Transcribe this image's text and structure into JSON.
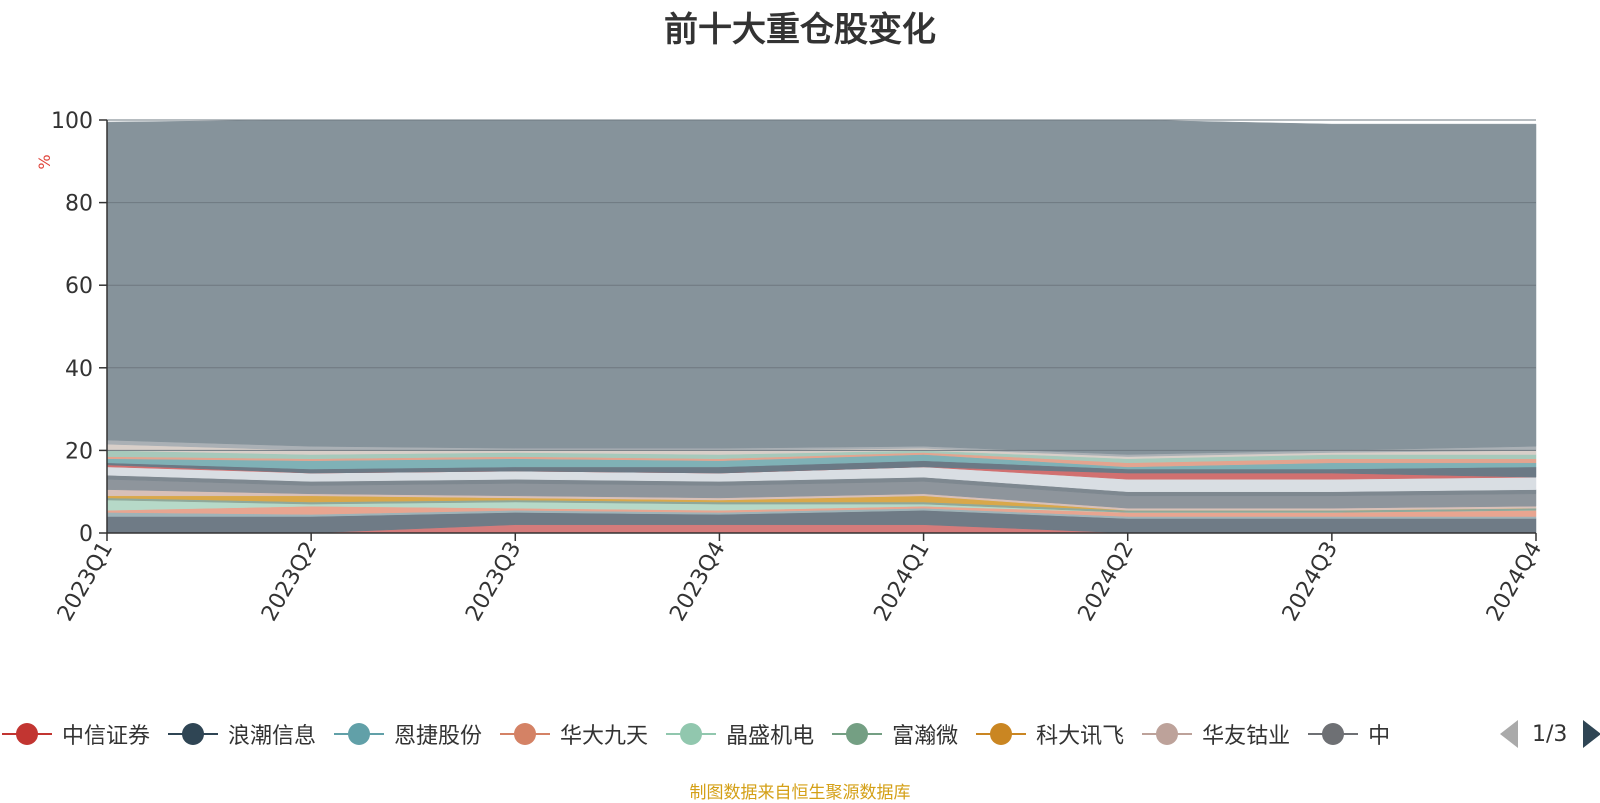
{
  "title": "前十大重仓股变化",
  "source_note": "制图数据来自恒生聚源数据库",
  "pager": {
    "text": "1/3"
  },
  "chart_data": {
    "type": "area",
    "stacked": true,
    "title": "前十大重仓股变化",
    "ylabel": "%",
    "ylim": [
      0,
      100
    ],
    "yticks": [
      0,
      20,
      40,
      60,
      80,
      100
    ],
    "grid": true,
    "x": [
      "2023Q1",
      "2023Q2",
      "2023Q3",
      "2023Q4",
      "2024Q1",
      "2024Q2",
      "2024Q3",
      "2024Q4"
    ],
    "legend_position": "bottom",
    "legend": [
      {
        "name": "中信证券",
        "color": "#c23531"
      },
      {
        "name": "浪潮信息",
        "color": "#2f4554"
      },
      {
        "name": "恩捷股份",
        "color": "#61a0a8"
      },
      {
        "name": "华大九天",
        "color": "#d48265"
      },
      {
        "name": "晶盛机电",
        "color": "#91c7ae"
      },
      {
        "name": "富瀚微",
        "color": "#749f83"
      },
      {
        "name": "科大讯飞",
        "color": "#ca8622"
      },
      {
        "name": "华友钴业",
        "color": "#bda29a"
      },
      {
        "name": "中",
        "color": "#6e7074"
      }
    ],
    "series": [
      {
        "values": [
          0,
          0,
          2,
          2,
          2,
          0,
          0,
          0
        ],
        "color": "#d47b7b"
      },
      {
        "values": [
          4,
          4,
          3,
          2.5,
          3.5,
          3.5,
          3.5,
          3.5
        ],
        "color": "#6f7b86"
      },
      {
        "values": [
          1,
          0.5,
          0.5,
          0.5,
          0.5,
          0.5,
          0.5,
          0.5
        ],
        "color": "#9fb3b8"
      },
      {
        "values": [
          0.5,
          2,
          0.5,
          0.5,
          0.5,
          1,
          1,
          1.5
        ],
        "color": "#e8a590"
      },
      {
        "values": [
          2.5,
          0.5,
          1.5,
          1.5,
          0.5,
          0,
          0,
          0
        ],
        "color": "#b6d9c8"
      },
      {
        "values": [
          0.5,
          0.5,
          0.5,
          0.5,
          0.5,
          0.5,
          0.5,
          0.5
        ],
        "color": "#8fa89a"
      },
      {
        "values": [
          0.5,
          1.5,
          0.5,
          0.5,
          1.5,
          0,
          0,
          0
        ],
        "color": "#d9a84a"
      },
      {
        "values": [
          1.5,
          0.5,
          0.5,
          0.5,
          0.5,
          0.5,
          0.5,
          0.5
        ],
        "color": "#d8c0b8"
      },
      {
        "values": [
          2.5,
          2,
          3,
          3,
          3,
          3,
          3,
          3
        ],
        "color": "#8e959c"
      },
      {
        "values": [
          1,
          1,
          1,
          1,
          1,
          1,
          1,
          1
        ],
        "color": "#7e8890"
      },
      {
        "values": [
          2,
          2,
          2,
          2,
          2.5,
          3,
          3,
          3
        ],
        "color": "#d9dee3"
      },
      {
        "values": [
          0.5,
          0,
          0,
          0,
          0,
          1.5,
          1.5,
          0
        ],
        "color": "#d17070"
      },
      {
        "values": [
          0.5,
          1,
          1,
          1.5,
          1.5,
          1,
          1,
          2.5
        ],
        "color": "#6b7985"
      },
      {
        "values": [
          1,
          2,
          2,
          1.5,
          1.5,
          0.5,
          1.5,
          1
        ],
        "color": "#7fb1b6"
      },
      {
        "values": [
          0.5,
          0.5,
          0.5,
          0.5,
          0.5,
          1,
          1,
          1
        ],
        "color": "#e3a48f"
      },
      {
        "values": [
          1.5,
          1,
          1,
          1,
          0.5,
          1,
          1,
          1
        ],
        "color": "#a7c9bb"
      },
      {
        "values": [
          1.5,
          1,
          0.5,
          1,
          0.5,
          0.5,
          0.5,
          1
        ],
        "color": "#d8cfc9"
      },
      {
        "values": [
          1,
          1,
          0.5,
          0.5,
          0.5,
          0.5,
          0.5,
          1
        ],
        "color": "#aab0b5"
      },
      {
        "values": [
          77,
          79,
          81,
          80,
          79,
          81,
          79,
          78
        ],
        "color": "#86939b"
      }
    ]
  }
}
